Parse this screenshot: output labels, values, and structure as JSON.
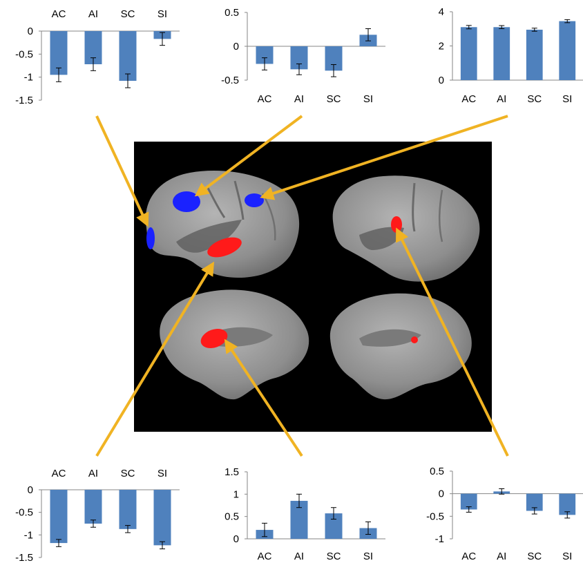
{
  "colors": {
    "bar": "#4f81bd",
    "arrow": "#f0b323",
    "axis": "#868686",
    "brain_bg": "#000000",
    "cortex": "#9a9a9a",
    "cluster_blue": "#1a22ff",
    "cluster_red": "#ff1a1a"
  },
  "chart_data": [
    {
      "id": "top-left",
      "type": "bar",
      "categories": [
        "AC",
        "AI",
        "SC",
        "SI"
      ],
      "values": [
        -0.95,
        -0.72,
        -1.08,
        -0.17
      ],
      "errors": [
        0.15,
        0.14,
        0.15,
        0.14
      ],
      "ylim": [
        -1.5,
        0
      ],
      "yticks": [
        "0",
        "-0.5",
        "-1",
        "-1.5"
      ],
      "tick_values": [
        0,
        -0.5,
        -1,
        -1.5
      ],
      "category_axis": "top"
    },
    {
      "id": "top-middle",
      "type": "bar",
      "categories": [
        "AC",
        "AI",
        "SC",
        "SI"
      ],
      "values": [
        -0.26,
        -0.34,
        -0.36,
        0.17
      ],
      "errors": [
        0.09,
        0.08,
        0.09,
        0.09
      ],
      "ylim": [
        -0.5,
        0.5
      ],
      "yticks": [
        "0.5",
        "0",
        "-0.5"
      ],
      "tick_values": [
        0.5,
        0,
        -0.5
      ],
      "category_axis": "bottom"
    },
    {
      "id": "top-right",
      "type": "bar",
      "categories": [
        "AC",
        "AI",
        "SC",
        "SI"
      ],
      "values": [
        3.1,
        3.1,
        2.95,
        3.45
      ],
      "errors": [
        0.1,
        0.09,
        0.09,
        0.09
      ],
      "ylim": [
        0,
        4
      ],
      "yticks": [
        "4",
        "2",
        "0"
      ],
      "tick_values": [
        4,
        2,
        0
      ],
      "category_axis": "bottom"
    },
    {
      "id": "bottom-left",
      "type": "bar",
      "categories": [
        "AC",
        "AI",
        "SC",
        "SI"
      ],
      "values": [
        -1.18,
        -0.75,
        -0.87,
        -1.23
      ],
      "errors": [
        0.08,
        0.08,
        0.08,
        0.08
      ],
      "ylim": [
        -1.5,
        0
      ],
      "yticks": [
        "0",
        "-0.5",
        "-1",
        "-1.5"
      ],
      "tick_values": [
        0,
        -0.5,
        -1,
        -1.5
      ],
      "category_axis": "top"
    },
    {
      "id": "bottom-middle",
      "type": "bar",
      "categories": [
        "AC",
        "AI",
        "SC",
        "SI"
      ],
      "values": [
        0.2,
        0.85,
        0.57,
        0.24
      ],
      "errors": [
        0.15,
        0.15,
        0.13,
        0.14
      ],
      "ylim": [
        0,
        1.5
      ],
      "yticks": [
        "1.5",
        "1",
        "0.5",
        "0"
      ],
      "tick_values": [
        1.5,
        1,
        0.5,
        0
      ],
      "category_axis": "bottom"
    },
    {
      "id": "bottom-right",
      "type": "bar",
      "categories": [
        "AC",
        "AI",
        "SC",
        "SI"
      ],
      "values": [
        -0.35,
        0.05,
        -0.38,
        -0.47
      ],
      "errors": [
        0.06,
        0.06,
        0.07,
        0.07
      ],
      "ylim": [
        -1,
        0.5
      ],
      "yticks": [
        "0.5",
        "0",
        "-0.5",
        "-1"
      ],
      "tick_values": [
        0.5,
        0,
        -0.5,
        -1
      ],
      "category_axis": "bottom"
    }
  ]
}
